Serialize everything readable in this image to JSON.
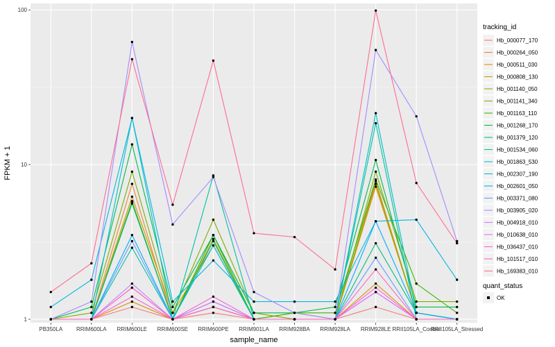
{
  "chart_data": {
    "type": "line",
    "xlabel": "sample_name",
    "ylabel": "FPKM + 1",
    "y_scale": "log10",
    "ylim": [
      0.95,
      110
    ],
    "y_ticks": [
      {
        "value": 1,
        "label": "1"
      },
      {
        "value": 10,
        "label": "10"
      },
      {
        "value": 100,
        "label": "100"
      }
    ],
    "categories": [
      "PB350LA",
      "RRIM600LA",
      "RRIM600LE",
      "RRIM600SE",
      "RRIM600PE",
      "RRIM901LA",
      "RRIM928BA",
      "RRIM928LA",
      "RRIM928LE",
      "RRII105LA_Control",
      "RRII105LA_Stressed"
    ],
    "grid": true,
    "background": "#ebebeb",
    "point_color": "#000000",
    "legend": {
      "title": "tracking_id",
      "position": "right",
      "items": [
        "Hb_000077_170",
        "Hb_000264_050",
        "Hb_000511_030",
        "Hb_000808_130",
        "Hb_001140_050",
        "Hb_001141_340",
        "Hb_001163_110",
        "Hb_001268_170",
        "Hb_001379_120",
        "Hb_001534_060",
        "Hb_001863_530",
        "Hb_002307_190",
        "Hb_002601_050",
        "Hb_003371_080",
        "Hb_003905_020",
        "Hb_004918_010",
        "Hb_010638_010",
        "Hb_036437_010",
        "Hb_101517_010",
        "Hb_169383_010"
      ]
    },
    "shape_legend": {
      "title": "quant_status",
      "items": [
        "OK"
      ]
    },
    "series": [
      {
        "name": "Hb_000077_170",
        "color": "#F8766D",
        "values": [
          1.0,
          1.0,
          1.2,
          1.0,
          1.1,
          1.0,
          1.0,
          1.0,
          1.2,
          1.0,
          1.0
        ]
      },
      {
        "name": "Hb_000264_050",
        "color": "#EA8331",
        "values": [
          1.0,
          1.0,
          7.5,
          1.0,
          3.5,
          1.1,
          1.0,
          1.0,
          7.5,
          1.1,
          1.0
        ]
      },
      {
        "name": "Hb_000511_030",
        "color": "#D89000",
        "values": [
          1.0,
          1.0,
          1.3,
          1.0,
          1.2,
          1.0,
          1.0,
          1.0,
          1.7,
          1.0,
          1.0
        ]
      },
      {
        "name": "Hb_000808_130",
        "color": "#C09B00",
        "values": [
          1.0,
          1.0,
          6.2,
          1.1,
          3.0,
          1.0,
          1.0,
          1.0,
          7.2,
          1.1,
          1.0
        ]
      },
      {
        "name": "Hb_001140_050",
        "color": "#A3A500",
        "values": [
          1.0,
          1.0,
          5.8,
          1.0,
          3.3,
          1.0,
          1.1,
          1.0,
          7.8,
          1.1,
          1.0
        ]
      },
      {
        "name": "Hb_001141_340",
        "color": "#7CAE00",
        "values": [
          1.0,
          1.1,
          9.0,
          1.1,
          4.4,
          1.1,
          1.0,
          1.0,
          9.0,
          1.3,
          1.3
        ]
      },
      {
        "name": "Hb_001163_110",
        "color": "#39B600",
        "values": [
          1.0,
          1.0,
          5.7,
          1.0,
          3.5,
          1.0,
          1.1,
          1.1,
          8.0,
          1.7,
          1.1
        ]
      },
      {
        "name": "Hb_001268_170",
        "color": "#00BB4E",
        "values": [
          1.0,
          1.2,
          13.5,
          1.2,
          3.5,
          1.1,
          1.1,
          1.2,
          10.7,
          1.2,
          1.2
        ]
      },
      {
        "name": "Hb_001379_120",
        "color": "#00BF7D",
        "values": [
          1.0,
          1.0,
          5.6,
          1.0,
          3.2,
          1.0,
          1.0,
          1.0,
          3.1,
          1.1,
          1.0
        ]
      },
      {
        "name": "Hb_001534_060",
        "color": "#00C1A3",
        "values": [
          1.0,
          1.0,
          2.9,
          1.0,
          8.5,
          1.0,
          1.0,
          1.0,
          18.5,
          1.0,
          1.0
        ]
      },
      {
        "name": "Hb_001863_530",
        "color": "#00BFC4",
        "values": [
          1.0,
          1.0,
          20.0,
          1.0,
          3.0,
          1.0,
          1.0,
          1.0,
          21.5,
          1.1,
          1.0
        ]
      },
      {
        "name": "Hb_002307_190",
        "color": "#00B9E3",
        "values": [
          1.2,
          1.8,
          20.0,
          1.3,
          2.4,
          1.3,
          1.3,
          1.3,
          4.3,
          4.4,
          1.8
        ]
      },
      {
        "name": "Hb_002601_050",
        "color": "#00ADFA",
        "values": [
          1.0,
          1.0,
          3.5,
          1.0,
          1.3,
          1.0,
          1.0,
          1.0,
          4.3,
          1.1,
          1.0
        ]
      },
      {
        "name": "Hb_003371_080",
        "color": "#619CFF",
        "values": [
          1.0,
          1.0,
          3.2,
          1.0,
          1.2,
          1.0,
          1.0,
          1.0,
          2.5,
          1.0,
          1.0
        ]
      },
      {
        "name": "Hb_003905_020",
        "color": "#A58AFF",
        "values": [
          1.0,
          1.3,
          62.0,
          4.1,
          8.3,
          1.5,
          1.1,
          1.0,
          55.0,
          20.5,
          3.2
        ]
      },
      {
        "name": "Hb_004918_010",
        "color": "#C77CFF",
        "values": [
          1.0,
          1.0,
          1.7,
          1.0,
          1.2,
          1.0,
          1.0,
          1.0,
          1.5,
          1.0,
          1.0
        ]
      },
      {
        "name": "Hb_010638_010",
        "color": "#E76BF3",
        "values": [
          1.0,
          1.0,
          1.6,
          1.0,
          1.3,
          1.0,
          1.0,
          1.0,
          1.5,
          1.0,
          1.0
        ]
      },
      {
        "name": "Hb_036437_010",
        "color": "#FA62DB",
        "values": [
          1.0,
          1.0,
          1.4,
          1.0,
          1.4,
          1.0,
          1.0,
          1.0,
          1.6,
          1.0,
          1.0
        ]
      },
      {
        "name": "Hb_101517_010",
        "color": "#FF62BC",
        "values": [
          1.0,
          1.0,
          1.6,
          1.0,
          1.2,
          1.0,
          1.0,
          1.0,
          2.1,
          1.0,
          1.0
        ]
      },
      {
        "name": "Hb_169383_010",
        "color": "#FF6C91",
        "values": [
          1.5,
          2.3,
          48.0,
          5.5,
          47.0,
          3.6,
          3.4,
          2.1,
          99.0,
          7.6,
          3.1
        ]
      }
    ]
  }
}
